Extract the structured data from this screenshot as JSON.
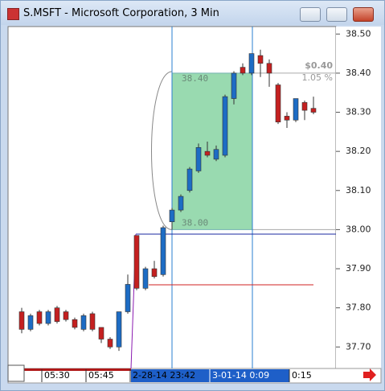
{
  "window_title": "S.MSFT - Microsoft Corporation, 3 Min",
  "chart_data": {
    "type": "candlestick",
    "categories": [
      null,
      null,
      null,
      "05:30",
      null,
      null,
      null,
      null,
      "05:45",
      null,
      null,
      null,
      null,
      "2-28-14  23:42",
      null,
      null,
      null,
      null,
      null,
      null,
      null,
      null,
      "3-01-14   0:09",
      null,
      null,
      null,
      null,
      null,
      null,
      null,
      null,
      "0:15",
      null,
      null
    ],
    "open": [
      37.79,
      37.745,
      37.79,
      37.76,
      37.8,
      37.79,
      37.77,
      37.745,
      37.785,
      37.75,
      37.72,
      37.7,
      37.79,
      37.985,
      37.85,
      37.9,
      37.885,
      38.02,
      38.05,
      38.1,
      38.15,
      38.2,
      38.18,
      38.19,
      38.335,
      38.415,
      38.4,
      38.445,
      38.425,
      38.37,
      38.29,
      38.28,
      38.325,
      38.31
    ],
    "high": [
      37.8,
      37.785,
      37.795,
      37.795,
      37.805,
      37.795,
      37.775,
      37.785,
      37.79,
      37.75,
      37.725,
      37.79,
      37.885,
      37.985,
      37.905,
      37.92,
      38.01,
      38.055,
      38.09,
      38.16,
      38.22,
      38.225,
      38.215,
      38.345,
      38.405,
      38.425,
      38.45,
      38.46,
      38.435,
      38.375,
      38.3,
      38.335,
      38.33,
      38.34
    ],
    "low": [
      37.735,
      37.74,
      37.755,
      37.755,
      37.76,
      37.765,
      37.745,
      37.74,
      37.74,
      37.71,
      37.695,
      37.69,
      37.785,
      37.845,
      37.845,
      37.875,
      37.88,
      38.0,
      38.045,
      38.095,
      38.145,
      38.185,
      38.175,
      38.185,
      38.32,
      38.395,
      38.395,
      38.39,
      38.365,
      38.27,
      38.26,
      38.275,
      38.28,
      38.295
    ],
    "close": [
      37.745,
      37.78,
      37.76,
      37.79,
      37.765,
      37.77,
      37.75,
      37.78,
      37.745,
      37.72,
      37.7,
      37.79,
      37.86,
      37.85,
      37.9,
      37.88,
      38.005,
      38.05,
      38.085,
      38.155,
      38.21,
      38.19,
      38.205,
      38.34,
      38.4,
      38.4,
      38.45,
      38.425,
      38.4,
      38.275,
      38.28,
      38.335,
      38.305,
      38.3
    ],
    "up_color": "#1d6cc4",
    "down_color": "#c42020",
    "ylim": [
      37.645,
      38.515
    ],
    "yticks": [
      {
        "value": 37.7,
        "label": "37.70"
      },
      {
        "value": 37.8,
        "label": "37.80"
      },
      {
        "value": 37.9,
        "label": "37.90"
      },
      {
        "value": 38,
        "label": "38.00"
      },
      {
        "value": 38.1,
        "label": "38.10"
      },
      {
        "value": 38.2,
        "label": "38.20"
      },
      {
        "value": 38.3,
        "label": "38.30"
      },
      {
        "value": 38.4,
        "label": "38.40"
      },
      {
        "value": 38.5,
        "label": "38.50"
      }
    ],
    "annotations": {
      "box_top": "38.40",
      "box_bottom": "38.00",
      "change": "$0.40",
      "change_percent": "1.05 %"
    }
  }
}
